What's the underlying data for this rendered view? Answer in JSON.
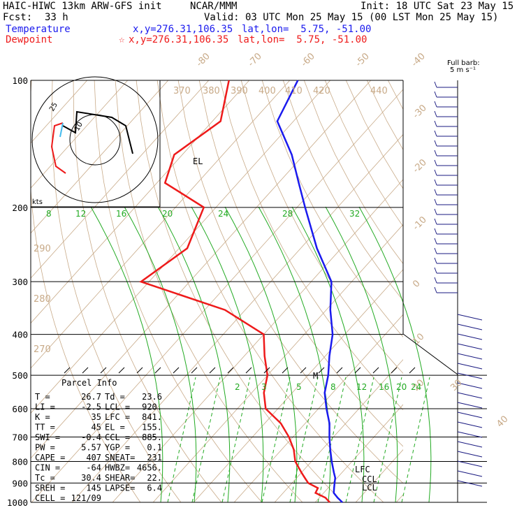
{
  "header": {
    "model": "HAIC-HIWC 13km ARW-GFS init",
    "org": "NCAR/MMM",
    "init": "Init: 18 UTC Sat 23 May 15",
    "fcst_label": "Fcst:",
    "fcst_value": "33 h",
    "valid": "Valid: 03 UTC Mon 25 May 15 (00 LST Mon 25 May 15)",
    "temp_label": "Temperature",
    "temp_xy": "x,y=276.31,106.35",
    "temp_latlon": "lat,lon=  5.75, -51.00",
    "dew_label": "Dewpoint",
    "dew_star": "☆",
    "dew_xy": "x,y=276.31,106.35",
    "dew_latlon": "lat,lon=  5.75, -51.00"
  },
  "barb_legend": {
    "line1": "Full barb:",
    "line2": "5 m s⁻¹"
  },
  "hodograph": {
    "units": "kts",
    "ring_inner": "10",
    "ring_outer": "25"
  },
  "parcel": {
    "title": "Parcel Info",
    "rows": [
      [
        "T  =",
        "26.7",
        "Td =",
        "23.6"
      ],
      [
        "LI =",
        "-2.5",
        "LCL =",
        "920."
      ],
      [
        "K  =",
        "35",
        "LFC =",
        "841."
      ],
      [
        "TT =",
        "45",
        "EL  =",
        "155."
      ],
      [
        "SWI =",
        "-0.4",
        "CCL =",
        "885."
      ],
      [
        "PW =",
        "5.57",
        "YGP =",
        "0.1"
      ],
      [
        "CAPE =",
        "407",
        "SNEAT=",
        "231"
      ],
      [
        "CIN =",
        "-64",
        "HWBZ=",
        "4656."
      ],
      [
        "Tc =",
        "30.4",
        "SHEAR=",
        "22."
      ],
      [
        "SREH =",
        "145",
        "LAPSE=",
        "6.4"
      ],
      [
        "CELL =",
        "121/09",
        "",
        ""
      ]
    ]
  },
  "level_labels": {
    "el": "EL",
    "lfc": "LFC",
    "ccl": "CCL",
    "lcl": "LCL",
    "m": "M"
  },
  "colors": {
    "temperature": "#1a1aee",
    "dewpoint": "#ee1a1a",
    "isotherm": "#c8aa88",
    "mixing": "#22aa22",
    "barb": "#1a1a80"
  },
  "chart_data": {
    "type": "line",
    "title": "HAIC-HIWC 13km ARW-GFS init",
    "pressure_ticks": [
      "100",
      "200",
      "300",
      "400",
      "500",
      "600",
      "700",
      "800",
      "900",
      "1000"
    ],
    "pressure_levels": [
      100,
      200,
      300,
      400,
      500,
      600,
      700,
      800,
      900,
      1000
    ],
    "isotherm_labels": [
      "-80",
      "-70",
      "-60",
      "-50",
      "-40",
      "-30",
      "-20",
      "-10",
      "0",
      "10",
      "20",
      "30",
      "40"
    ],
    "isotherm_values": [
      -80,
      -70,
      -60,
      -50,
      -40,
      -30,
      -20,
      -10,
      0,
      10,
      20,
      30,
      40
    ],
    "theta_labels": [
      "370",
      "380",
      "390",
      "400",
      "410",
      "420",
      "430",
      "440",
      "290",
      "280",
      "270"
    ],
    "mixing_labels_upper": [
      "8",
      "12",
      "16",
      "20",
      "24",
      "28",
      "32"
    ],
    "mixing_labels_lower": [
      "2",
      "3",
      "5",
      "8",
      "12",
      "16",
      "20",
      "24"
    ],
    "series": [
      {
        "name": "Temperature",
        "color": "#1a1aee",
        "pressure": [
          1000,
          975,
          950,
          925,
          900,
          875,
          850,
          800,
          750,
          700,
          650,
          600,
          550,
          500,
          450,
          400,
          350,
          300,
          250,
          200,
          175,
          150,
          125,
          100
        ],
        "temp_c": [
          26.7,
          24.5,
          22.5,
          21.5,
          20.5,
          19.5,
          18,
          15,
          12,
          9,
          6,
          2,
          -2,
          -5,
          -9,
          -13,
          -19,
          -25,
          -36,
          -48,
          -55,
          -63,
          -74,
          -78
        ]
      },
      {
        "name": "Dewpoint",
        "color": "#ee1a1a",
        "pressure": [
          1000,
          975,
          950,
          925,
          900,
          875,
          850,
          800,
          750,
          700,
          650,
          600,
          550,
          500,
          450,
          400,
          350,
          300,
          250,
          200,
          175,
          150,
          125,
          100
        ],
        "temp_c": [
          23.6,
          21.5,
          18,
          17.5,
          14,
          12,
          10,
          6,
          3,
          -1,
          -6,
          -13,
          -17,
          -20,
          -25,
          -30,
          -45,
          -72,
          -68,
          -73,
          -88,
          -92,
          -88,
          -95
        ]
      }
    ]
  }
}
